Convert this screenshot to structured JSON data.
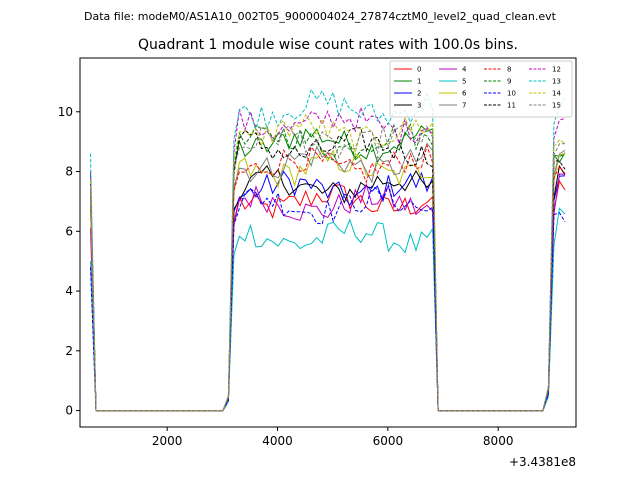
{
  "suptitle": "Data file: modeM0/AS1A10_002T05_9000004024_27874cztM0_level2_quad_clean.evt",
  "chart_data": {
    "type": "line",
    "title": "Quadrant 1 module wise count rates with 100.0s bins.",
    "xlabel": "",
    "ylabel": "",
    "x_offset_label": "+3.4381e8",
    "xlim": [
      420,
      9410
    ],
    "ylim": [
      -0.55,
      11.8
    ],
    "xticks": [
      2000,
      4000,
      6000,
      8000
    ],
    "xtick_labels": [
      "2000",
      "4000",
      "6000",
      "8000"
    ],
    "yticks": [
      0,
      2,
      4,
      6,
      8,
      10
    ],
    "ytick_labels": [
      "0",
      "2",
      "4",
      "6",
      "8",
      "10"
    ],
    "grid": false,
    "legend_position": "top-right",
    "series": [
      {
        "name": "0",
        "color": "#ff0000",
        "dash": "solid",
        "base": 7.0,
        "start": 7.2,
        "end": 7.4
      },
      {
        "name": "1",
        "color": "#008000",
        "dash": "solid",
        "base": 9.0,
        "start": 7.4,
        "end": 8.6
      },
      {
        "name": "2",
        "color": "#0000ff",
        "dash": "solid",
        "base": 7.4,
        "start": 7.6,
        "end": 7.9
      },
      {
        "name": "3",
        "color": "#000000",
        "dash": "solid",
        "base": 7.5,
        "start": 6.9,
        "end": 8.0
      },
      {
        "name": "4",
        "color": "#bf00bf",
        "dash": "solid",
        "base": 6.9,
        "start": 6.1,
        "end": 7.8
      },
      {
        "name": "5",
        "color": "#00bfbf",
        "dash": "solid",
        "base": 5.8,
        "start": 5.0,
        "end": 6.6
      },
      {
        "name": "6",
        "color": "#bfbf00",
        "dash": "solid",
        "base": 8.1,
        "start": 7.0,
        "end": 8.7
      },
      {
        "name": "7",
        "color": "#808080",
        "dash": "solid",
        "base": 8.3,
        "start": 7.3,
        "end": 8.6
      },
      {
        "name": "8",
        "color": "#ff0000",
        "dash": "dashed",
        "base": 8.2,
        "start": 7.5,
        "end": 8.2
      },
      {
        "name": "9",
        "color": "#008000",
        "dash": "dashed",
        "base": 9.0,
        "start": 7.9,
        "end": 8.8
      },
      {
        "name": "10",
        "color": "#0000ff",
        "dash": "dashed",
        "base": 6.9,
        "start": 4.8,
        "end": 6.6
      },
      {
        "name": "11",
        "color": "#000000",
        "dash": "dashed",
        "base": 8.8,
        "start": 7.7,
        "end": 8.2
      },
      {
        "name": "12",
        "color": "#bf00bf",
        "dash": "dashed",
        "base": 9.6,
        "start": 8.0,
        "end": 9.8
      },
      {
        "name": "13",
        "color": "#00bfbf",
        "dash": "dashed",
        "base": 10.1,
        "start": 8.6,
        "end": 10.4
      },
      {
        "name": "14",
        "color": "#bfbf00",
        "dash": "dashed",
        "base": 9.3,
        "start": 7.7,
        "end": 9.0
      },
      {
        "name": "15",
        "color": "#808080",
        "dash": "dashed",
        "base": 9.0,
        "start": 7.4,
        "end": 8.8
      }
    ]
  }
}
